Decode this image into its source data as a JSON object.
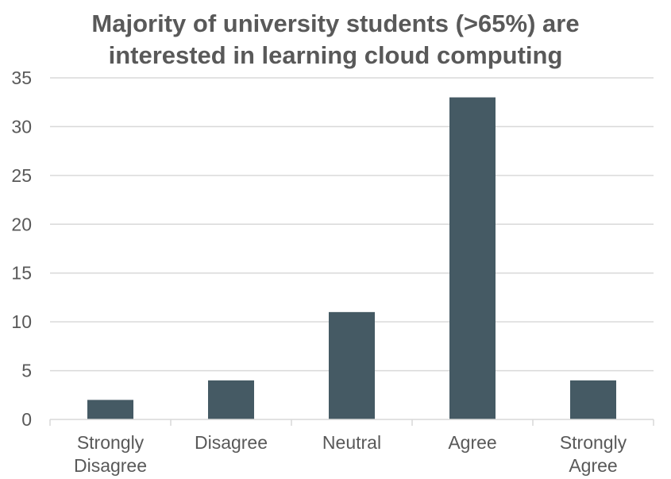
{
  "chart_data": {
    "type": "bar",
    "title": "Majority of university students (>65%) are interested in learning cloud computing",
    "title_lines": [
      "Majority of university students (>65%) are",
      "interested in learning cloud computing"
    ],
    "categories": [
      [
        "Strongly",
        "Disagree"
      ],
      [
        "Disagree"
      ],
      [
        "Neutral"
      ],
      [
        "Agree"
      ],
      [
        "Strongly",
        "Agree"
      ]
    ],
    "values": [
      2,
      4,
      11,
      33,
      4
    ],
    "xlabel": "",
    "ylabel": "",
    "ylim": [
      0,
      35
    ],
    "yticks": [
      0,
      5,
      10,
      15,
      20,
      25,
      30,
      35
    ],
    "grid": true,
    "legend": "none",
    "bar_color": "#455a64",
    "grid_color": "#d9d9d9",
    "text_color": "#595959"
  }
}
